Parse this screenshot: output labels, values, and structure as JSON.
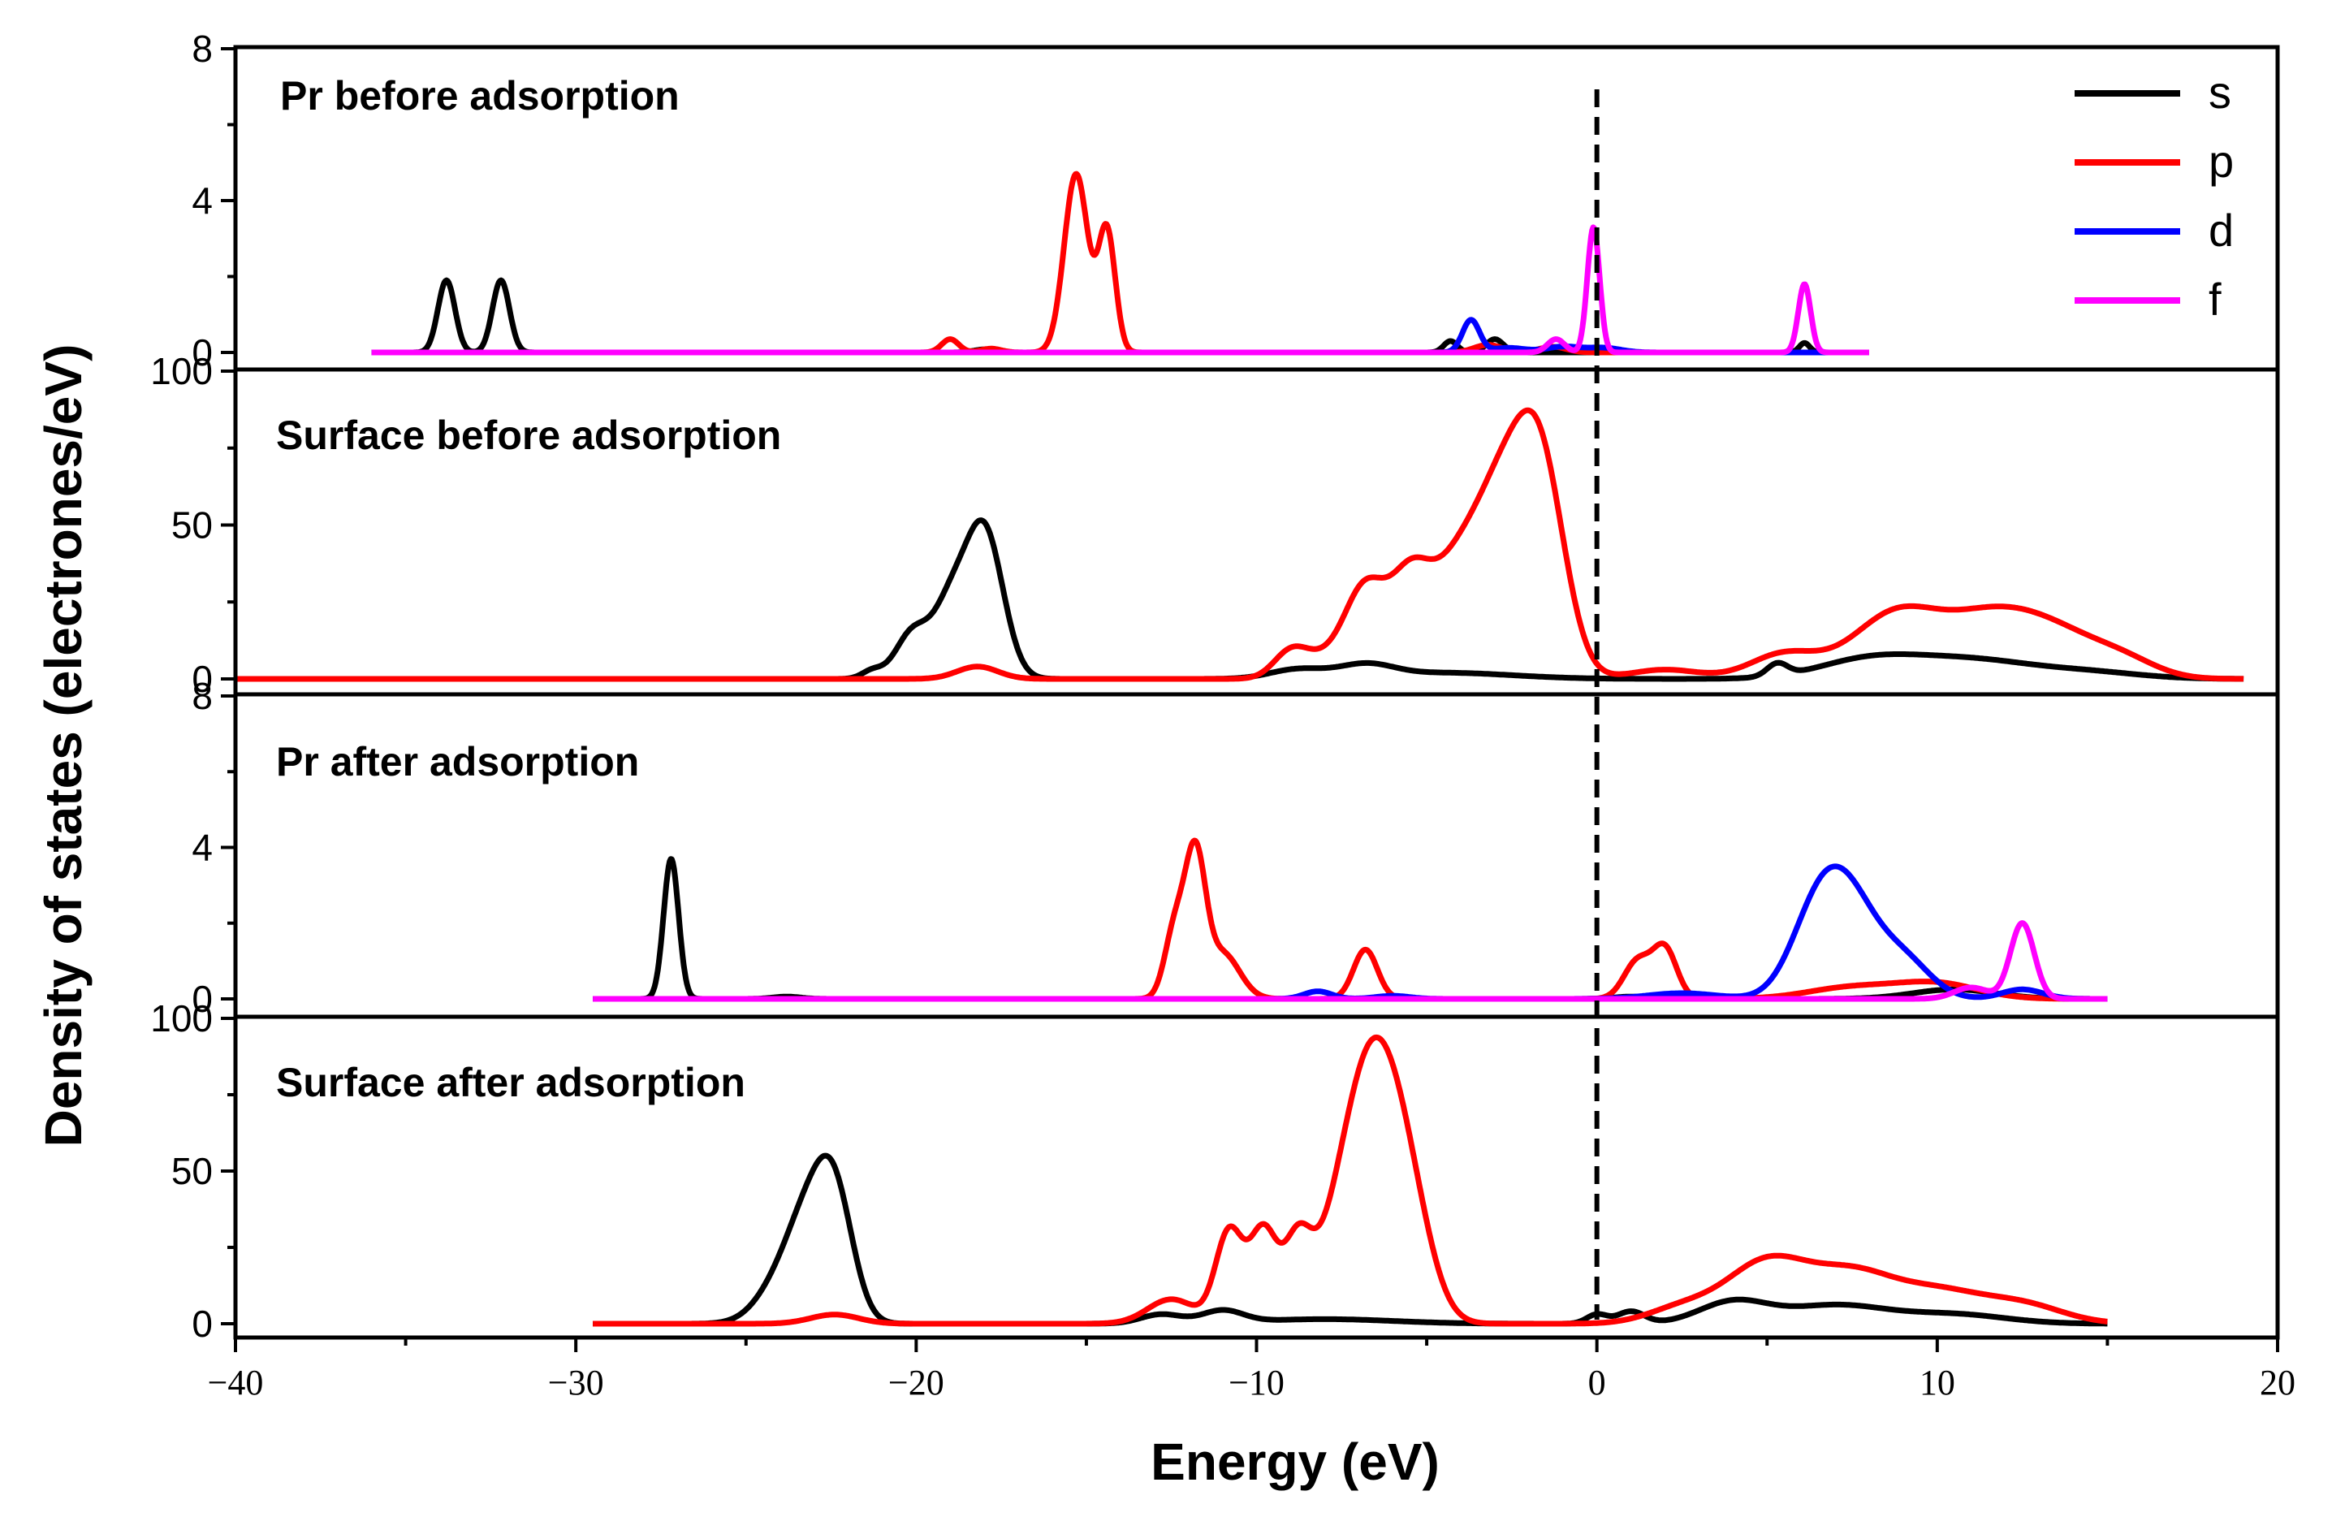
{
  "chart_data": {
    "type": "line",
    "xlabel": "Energy (eV)",
    "ylabel": "Density of states (electrones/eV)",
    "xlim": [
      -40,
      20
    ],
    "x_ticks": [
      -40,
      -30,
      -20,
      -10,
      0,
      10,
      20
    ],
    "x_tick_labels": [
      "−40",
      "−30",
      "−20",
      "−10",
      "0",
      "10",
      "20"
    ],
    "fermi_level": 0,
    "legend": [
      {
        "label": "s",
        "color": "#000000"
      },
      {
        "label": "p",
        "color": "#ff0000"
      },
      {
        "label": "d",
        "color": "#0000ff"
      },
      {
        "label": "f",
        "color": "#ff00ff"
      }
    ],
    "panels": [
      {
        "title": "Pr before adsorption",
        "ylim": [
          0,
          8
        ],
        "y_ticks": [
          0,
          4,
          8
        ],
        "y_tick_labels": [
          "0",
          "4",
          "8"
        ],
        "series": [
          {
            "name": "s",
            "color": "#000000",
            "range": [
              -36,
              8
            ],
            "peaks": [
              [
                -33.8,
                1.9,
                0.25
              ],
              [
                -32.2,
                1.9,
                0.25
              ],
              [
                -4.3,
                0.3,
                0.2
              ],
              [
                -3.0,
                0.35,
                0.25
              ],
              [
                -18.0,
                0.08,
                0.3
              ],
              [
                6.1,
                0.25,
                0.15
              ]
            ]
          },
          {
            "name": "p",
            "color": "#ff0000",
            "range": [
              -36,
              8
            ],
            "peaks": [
              [
                -19.0,
                0.35,
                0.25
              ],
              [
                -17.8,
                0.1,
                0.3
              ],
              [
                -15.3,
                4.7,
                0.35
              ],
              [
                -14.4,
                3.2,
                0.25
              ],
              [
                -3.2,
                0.2,
                0.4
              ],
              [
                -1.3,
                0.15,
                0.4
              ]
            ]
          },
          {
            "name": "d",
            "color": "#0000ff",
            "range": [
              -36,
              8
            ],
            "peaks": [
              [
                -3.7,
                0.85,
                0.25
              ],
              [
                -2.6,
                0.12,
                0.5
              ],
              [
                -1.0,
                0.15,
                0.5
              ],
              [
                0.2,
                0.12,
                0.5
              ]
            ]
          },
          {
            "name": "f",
            "color": "#ff00ff",
            "range": [
              -36,
              8
            ],
            "peaks": [
              [
                -0.1,
                3.3,
                0.18
              ],
              [
                -1.2,
                0.35,
                0.25
              ],
              [
                6.1,
                1.8,
                0.18
              ]
            ]
          }
        ]
      },
      {
        "title": "Surface before adsorption",
        "ylim": [
          0,
          100
        ],
        "y_ticks": [
          0,
          50,
          100
        ],
        "y_tick_labels": [
          "0",
          "50",
          "100"
        ],
        "series": [
          {
            "name": "s",
            "color": "#000000",
            "range": [
              -40,
              19
            ],
            "peaks": [
              [
                -21.3,
                2.5,
                0.3
              ],
              [
                -20.1,
                15,
                0.5
              ],
              [
                -19.0,
                22,
                0.5
              ],
              [
                -18.0,
                48,
                0.55
              ],
              [
                -8.8,
                3,
                0.8
              ],
              [
                -6.8,
                4,
                0.8
              ],
              [
                -4.5,
                2,
                2.0
              ],
              [
                5.3,
                4,
                0.3
              ],
              [
                8.0,
                6,
                1.5
              ],
              [
                11.0,
                6,
                1.8
              ],
              [
                14.5,
                2,
                1.5
              ]
            ]
          },
          {
            "name": "p",
            "color": "#ff0000",
            "range": [
              -40,
              19
            ],
            "peaks": [
              [
                -18.2,
                4,
                0.6
              ],
              [
                -9.0,
                8,
                0.5
              ],
              [
                -6.8,
                28,
                0.6
              ],
              [
                -5.5,
                30,
                0.6
              ],
              [
                -4.3,
                24,
                0.7
              ],
              [
                -2.8,
                60,
                0.9
              ],
              [
                -1.6,
                55,
                0.7
              ],
              [
                -8.0,
                6,
                0.7
              ],
              [
                2.0,
                3,
                1.0
              ],
              [
                5.5,
                8,
                1.0
              ],
              [
                8.8,
                21,
                1.3
              ],
              [
                11.5,
                17,
                1.3
              ],
              [
                13.5,
                13,
                1.3
              ],
              [
                15.5,
                5,
                1.0
              ]
            ]
          }
        ]
      },
      {
        "title": "Pr after adsorption",
        "ylim": [
          0,
          8
        ],
        "y_ticks": [
          0,
          4,
          8
        ],
        "y_tick_labels": [
          "0",
          "4",
          "8"
        ],
        "series": [
          {
            "name": "s",
            "color": "#000000",
            "range": [
              -29.5,
              15
            ],
            "peaks": [
              [
                -27.2,
                3.7,
                0.22
              ],
              [
                -23.8,
                0.06,
                0.4
              ],
              [
                1.0,
                0.06,
                0.5
              ],
              [
                10.5,
                0.25,
                1.2
              ]
            ]
          },
          {
            "name": "p",
            "color": "#ff0000",
            "range": [
              -29.5,
              15
            ],
            "peaks": [
              [
                -12.4,
                1.8,
                0.3
              ],
              [
                -11.8,
                3.6,
                0.3
              ],
              [
                -11.0,
                1.2,
                0.5
              ],
              [
                -6.8,
                1.3,
                0.35
              ],
              [
                1.2,
                1.0,
                0.4
              ],
              [
                2.0,
                1.3,
                0.35
              ],
              [
                7.5,
                0.3,
                1.3
              ],
              [
                10.0,
                0.4,
                1.2
              ]
            ]
          },
          {
            "name": "d",
            "color": "#0000ff",
            "range": [
              -29.5,
              15
            ],
            "peaks": [
              [
                -8.2,
                0.2,
                0.4
              ],
              [
                -6.0,
                0.08,
                0.5
              ],
              [
                2.5,
                0.15,
                1.0
              ],
              [
                6.5,
                2.2,
                0.8
              ],
              [
                7.5,
                2.0,
                0.8
              ],
              [
                9.0,
                1.0,
                0.8
              ],
              [
                12.5,
                0.25,
                0.6
              ]
            ]
          },
          {
            "name": "f",
            "color": "#ff00ff",
            "range": [
              -29.5,
              15
            ],
            "peaks": [
              [
                12.5,
                2.0,
                0.35
              ],
              [
                11.0,
                0.3,
                0.5
              ]
            ]
          }
        ]
      },
      {
        "title": "Surface after adsorption",
        "ylim": [
          0,
          100
        ],
        "y_ticks": [
          0,
          50,
          100
        ],
        "y_tick_labels": [
          "0",
          "50",
          "100"
        ],
        "series": [
          {
            "name": "s",
            "color": "#000000",
            "range": [
              -29.5,
              15
            ],
            "peaks": [
              [
                -24.0,
                12,
                0.7
              ],
              [
                -23.2,
                26,
                0.6
              ],
              [
                -22.4,
                40,
                0.55
              ],
              [
                -12.8,
                3,
                0.6
              ],
              [
                -11.0,
                4,
                0.6
              ],
              [
                -8.0,
                1.5,
                2.0
              ],
              [
                0.0,
                3,
                0.3
              ],
              [
                1.0,
                4,
                0.4
              ],
              [
                4.0,
                7,
                1.0
              ],
              [
                7.0,
                6,
                1.5
              ],
              [
                10.5,
                3,
                1.5
              ]
            ]
          },
          {
            "name": "p",
            "color": "#ff0000",
            "range": [
              -29.5,
              15
            ],
            "peaks": [
              [
                -22.4,
                3,
                0.7
              ],
              [
                -12.5,
                8,
                0.7
              ],
              [
                -10.8,
                30,
                0.4
              ],
              [
                -9.8,
                30,
                0.4
              ],
              [
                -8.8,
                24,
                0.4
              ],
              [
                -7.3,
                40,
                0.8
              ],
              [
                -6.5,
                52,
                0.7
              ],
              [
                -5.6,
                40,
                0.7
              ],
              [
                2.5,
                5,
                1.0
              ],
              [
                5.0,
                20,
                1.2
              ],
              [
                7.5,
                15,
                1.2
              ],
              [
                10.0,
                10,
                1.3
              ],
              [
                12.5,
                6,
                1.2
              ]
            ]
          }
        ]
      }
    ]
  }
}
